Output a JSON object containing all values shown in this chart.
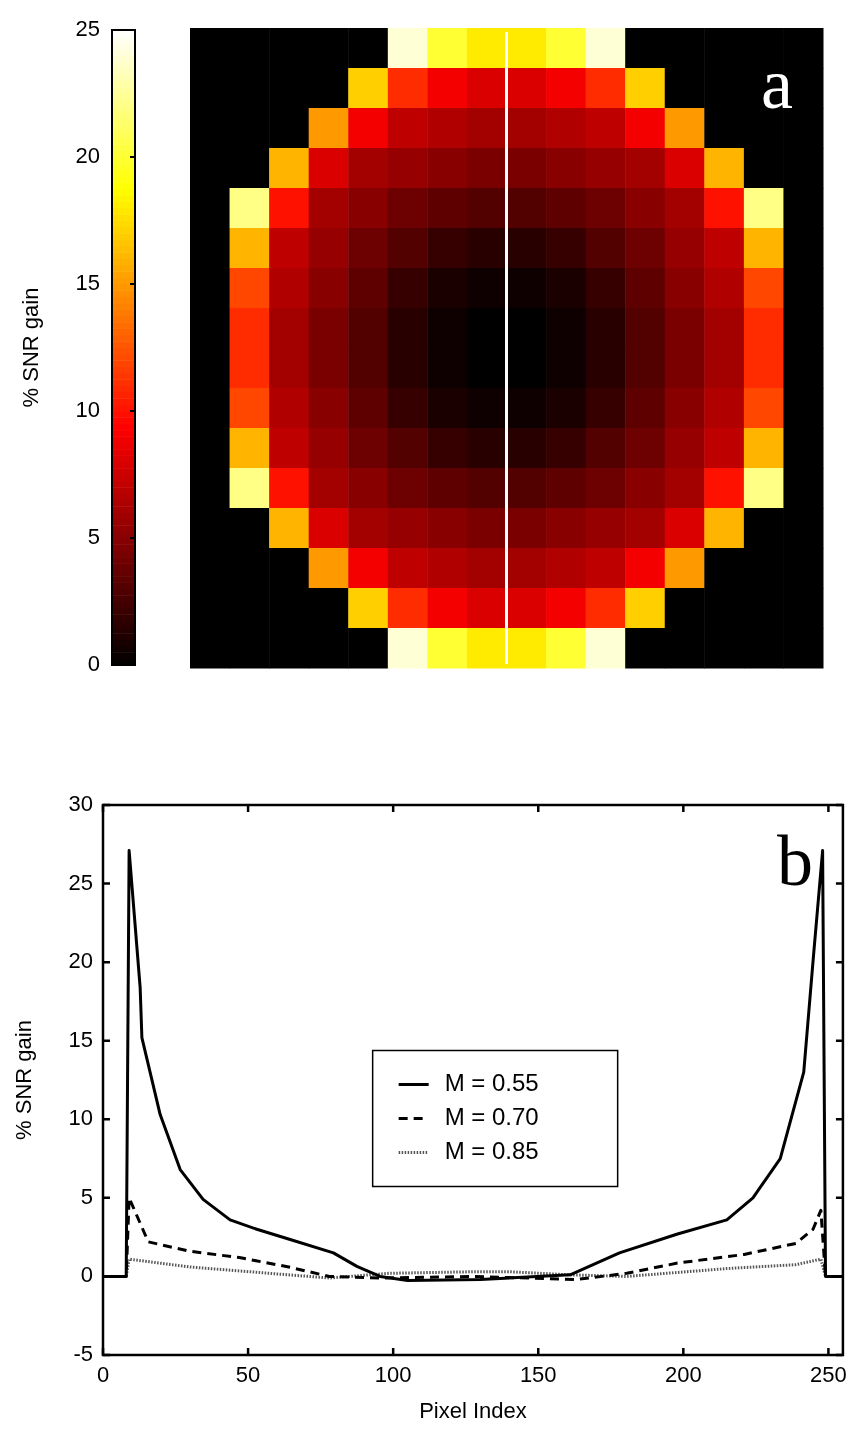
{
  "chart_data": [
    {
      "type": "heatmap",
      "clabel": "% SNR gain",
      "annotations": [
        "a"
      ],
      "categories": [
        null,
        null,
        null,
        null,
        null,
        null,
        null,
        null,
        null,
        null,
        null,
        null,
        null,
        null,
        null,
        null
      ],
      "y_categories": [
        null,
        null,
        null,
        null,
        null,
        null,
        null,
        null,
        null,
        null,
        null,
        null,
        null,
        null,
        null,
        null
      ],
      "cells": [
        [
          0,
          0,
          0,
          0,
          0,
          24,
          20,
          18,
          18,
          20,
          24,
          0,
          0,
          0,
          0,
          0
        ],
        [
          0,
          0,
          0,
          0,
          17,
          11,
          9,
          8,
          8,
          9,
          11,
          17,
          0,
          0,
          0,
          0
        ],
        [
          0,
          0,
          0,
          15,
          9,
          7,
          6.5,
          6,
          6,
          6.5,
          7,
          9,
          15,
          0,
          0,
          0
        ],
        [
          0,
          0,
          16,
          8,
          6,
          5.5,
          5,
          4.5,
          4.5,
          5,
          5.5,
          6,
          8,
          16,
          0,
          0
        ],
        [
          0,
          22,
          10,
          6,
          5,
          4,
          3.5,
          3,
          3,
          3.5,
          4,
          5,
          6,
          10,
          22,
          0
        ],
        [
          0,
          16,
          7,
          5.5,
          4,
          3,
          2,
          1.5,
          1.5,
          2,
          3,
          4,
          5.5,
          7,
          16,
          0
        ],
        [
          0,
          12,
          6.5,
          5,
          3.5,
          2,
          1,
          0.5,
          0.5,
          1,
          2,
          3.5,
          5,
          6.5,
          12,
          0
        ],
        [
          0,
          11,
          6,
          4.5,
          3,
          1.5,
          0.5,
          0,
          0,
          0.5,
          1.5,
          3,
          4.5,
          6,
          11,
          0
        ],
        [
          0,
          11,
          6,
          4.5,
          3,
          1.5,
          0.5,
          0,
          0,
          0.5,
          1.5,
          3,
          4.5,
          6,
          11,
          0
        ],
        [
          0,
          12,
          6.5,
          5,
          3.5,
          2,
          1,
          0.5,
          0.5,
          1,
          2,
          3.5,
          5,
          6.5,
          12,
          0
        ],
        [
          0,
          16,
          7,
          5.5,
          4,
          3,
          2,
          1.5,
          1.5,
          2,
          3,
          4,
          5.5,
          7,
          16,
          0
        ],
        [
          0,
          22,
          10,
          6,
          5,
          4,
          3.5,
          3,
          3,
          3.5,
          4,
          5,
          6,
          10,
          22,
          0
        ],
        [
          0,
          0,
          16,
          8,
          6,
          5.5,
          5,
          4.5,
          4.5,
          5,
          5.5,
          6,
          8,
          16,
          0,
          0
        ],
        [
          0,
          0,
          0,
          15,
          9,
          7,
          6.5,
          6,
          6,
          6.5,
          7,
          9,
          15,
          0,
          0,
          0
        ],
        [
          0,
          0,
          0,
          0,
          17,
          11,
          9,
          8,
          8,
          9,
          11,
          17,
          0,
          0,
          0,
          0
        ],
        [
          0,
          0,
          0,
          0,
          0,
          24,
          20,
          18,
          18,
          20,
          24,
          0,
          0,
          0,
          0,
          0
        ]
      ],
      "clim": [
        0,
        25
      ],
      "cticks": [
        0,
        5,
        10,
        15,
        20,
        25
      ]
    },
    {
      "type": "line",
      "xlabel": "Pixel Index",
      "ylabel": "% SNR gain",
      "annotations": [
        "b"
      ],
      "xlim": [
        0,
        255
      ],
      "xticks": [
        0,
        50,
        100,
        150,
        200,
        250
      ],
      "ylim": [
        -5,
        30
      ],
      "yticks": [
        -5,
        0,
        5,
        10,
        15,
        20,
        25,
        30
      ],
      "grid": false,
      "legend": "center",
      "marker": "none",
      "series": [
        {
          "name": "M = 0.55",
          "color": "#000000",
          "line_style": "solid",
          "x": [
            0,
            8,
            9,
            12.8,
            13.4,
            19.7,
            26.6,
            34.5,
            43.8,
            53,
            64.5,
            79.4,
            87.5,
            95.5,
            105,
            130,
            161,
            178,
            198,
            215,
            224,
            233.4,
            241.5,
            244.9,
            248,
            249,
            255
          ],
          "values": [
            0,
            0,
            27.1,
            18.4,
            15.2,
            10.3,
            6.8,
            4.9,
            3.6,
            3,
            2.35,
            1.5,
            0.64,
            0,
            -0.26,
            -0.2,
            0.1,
            1.5,
            2.7,
            3.6,
            5,
            7.5,
            13,
            20.5,
            27.1,
            0,
            0
          ]
        },
        {
          "name": "M = 0.70",
          "color": "#000000",
          "line_style": "dashed",
          "x": [
            0,
            8,
            9,
            15.6,
            30,
            47,
            64,
            78,
            95.5,
            128,
            163,
            180.5,
            198,
            221,
            238.8,
            244.7,
            247.4,
            249,
            255
          ],
          "values": [
            0,
            0,
            5,
            2.2,
            1.6,
            1.2,
            0.6,
            0,
            -0.1,
            0,
            -0.2,
            0.2,
            0.85,
            1.4,
            2.1,
            3,
            4.2,
            0,
            0
          ]
        },
        {
          "name": "M = 0.85",
          "color": "#555555",
          "line_style": "dotted",
          "x": [
            0,
            8,
            9,
            30,
            64,
            78,
            98.6,
            128,
            140,
            161,
            180.5,
            215,
            238.8,
            247.4,
            249,
            255
          ],
          "values": [
            0,
            0,
            1.1,
            0.6,
            0.1,
            -0.1,
            0.2,
            0.3,
            0.3,
            0.1,
            0,
            0.5,
            0.75,
            1.1,
            0,
            0
          ]
        }
      ]
    }
  ]
}
